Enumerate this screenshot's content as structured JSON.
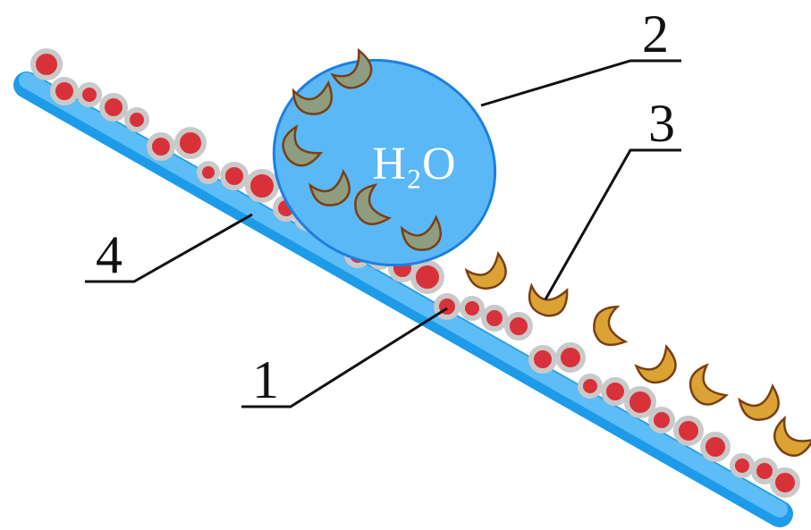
{
  "labels": {
    "particle": "1",
    "water_drop": "2",
    "contaminant": "3",
    "surface": "4"
  },
  "drop_text": "H₂O"
}
